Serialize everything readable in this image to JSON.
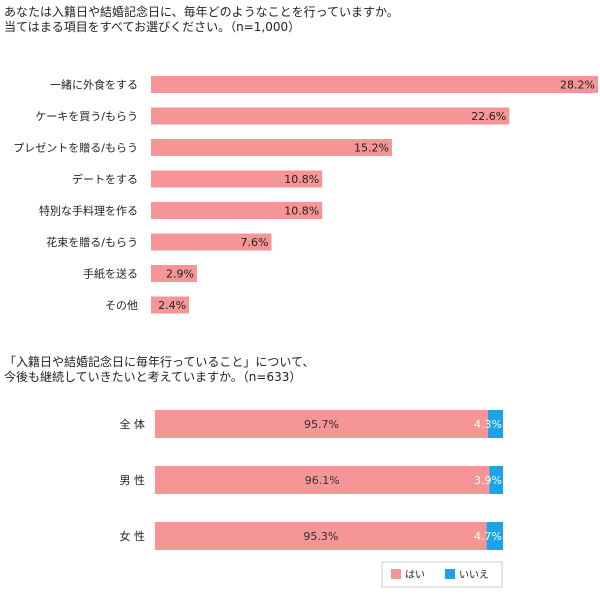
{
  "question1": "あなたは入籍日や結婚記念日に、毎年どのようなことを行っていますか。\n当てはまる項目をすべてお選びください。（n=1,000）",
  "question2": "「入籍日や結婚記念日に毎年行っていること」について、\n今後も継続していきたいと考えていますか。（n=633）",
  "colors": {
    "yes": "#f59595",
    "no": "#1aa3e8"
  },
  "chart_data": [
    {
      "type": "bar",
      "orientation": "horizontal",
      "categories": [
        "一緒に外食をする",
        "ケーキを買う/もらう",
        "プレゼントを贈る/もらう",
        "デートをする",
        "特別な手料理を作る",
        "花束を贈る/もらう",
        "手紙を送る",
        "その他"
      ],
      "values": [
        28.2,
        22.6,
        15.2,
        10.8,
        10.8,
        7.6,
        2.9,
        2.4
      ],
      "value_labels": [
        "28.2%",
        "22.6%",
        "15.2%",
        "10.8%",
        "10.8%",
        "7.6%",
        "2.9%",
        "2.4%"
      ],
      "xlim": [
        0,
        28.2
      ],
      "grid": false
    },
    {
      "type": "bar",
      "orientation": "horizontal",
      "stacked": true,
      "categories": [
        "全 体",
        "男 性",
        "女 性"
      ],
      "series": [
        {
          "name": "はい",
          "values": [
            95.7,
            96.1,
            95.3
          ],
          "labels": [
            "95.7%",
            "96.1%",
            "95.3%"
          ]
        },
        {
          "name": "いいえ",
          "values": [
            4.3,
            3.9,
            4.7
          ],
          "labels": [
            "4.3%",
            "3.9%",
            "4.7%"
          ]
        }
      ],
      "xlim": [
        0,
        100
      ],
      "legend": "bottom-right",
      "grid": false
    }
  ]
}
